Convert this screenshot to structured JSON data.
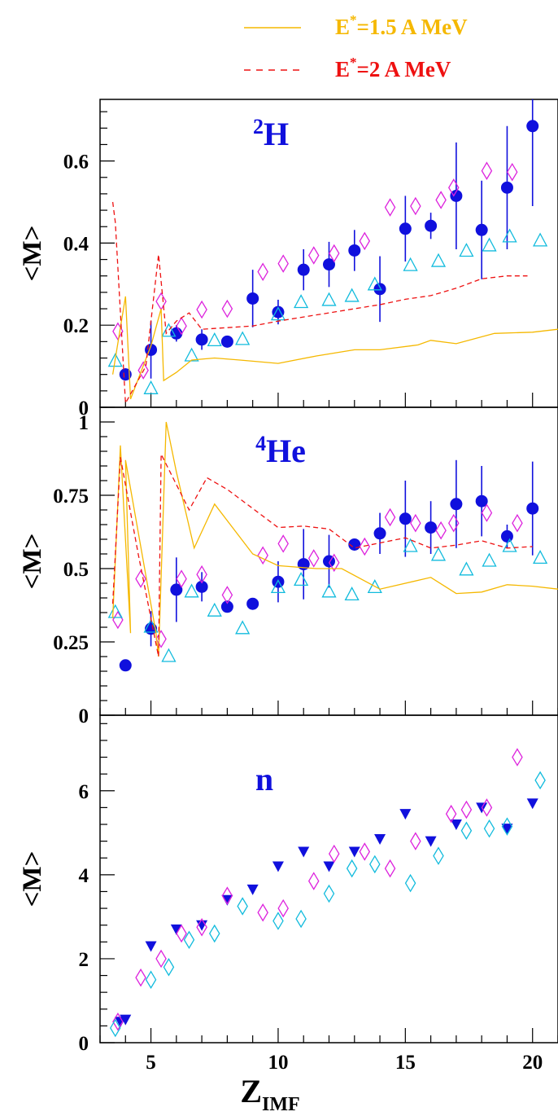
{
  "legend": [
    {
      "label": "=1.5 A MeV",
      "prefix": "E",
      "sup": "*",
      "color": "#f5b800",
      "dash": "solid"
    },
    {
      "label": "=2 A MeV",
      "prefix": "E",
      "sup": "*",
      "color": "#ee1111",
      "dash": "dashed"
    }
  ],
  "colors": {
    "filled": "#1010dd",
    "diamond": "#dd22dd",
    "open_cyan": "#11bbdd",
    "line_solid": "#f5b800",
    "line_dashed": "#ee1111",
    "title": "#1010dd"
  },
  "xaxis": {
    "label": "Z",
    "sub": "IMF",
    "range": [
      3,
      21
    ],
    "ticks": [
      5,
      10,
      15,
      20
    ]
  },
  "chart_data": [
    {
      "type": "scatter",
      "title_sup": "2",
      "title": "H",
      "ylabel": "<M>",
      "xlim": [
        3,
        21
      ],
      "ylim": [
        0,
        0.75
      ],
      "yticks": [
        "0",
        "0.2",
        "0.4",
        "0.6"
      ],
      "ytick_values": [
        0,
        0.2,
        0.4,
        0.6
      ],
      "series": [
        {
          "marker": "filled-circle",
          "points": [
            [
              4,
              0.08
            ],
            [
              5,
              0.14
            ],
            [
              6,
              0.18
            ],
            [
              7,
              0.165
            ],
            [
              8,
              0.16
            ],
            [
              9,
              0.265
            ],
            [
              10,
              0.232
            ],
            [
              11,
              0.335
            ],
            [
              12,
              0.348
            ],
            [
              13,
              0.382
            ],
            [
              14,
              0.288
            ],
            [
              15,
              0.435
            ],
            [
              16,
              0.442
            ],
            [
              17,
              0.515
            ],
            [
              18,
              0.432
            ],
            [
              19,
              0.535
            ],
            [
              20,
              0.685
            ]
          ],
          "err": [
            0.015,
            0.07,
            0.02,
            0.025,
            0.012,
            0.07,
            0.03,
            0.05,
            0.055,
            0.05,
            0.08,
            0.08,
            0.032,
            0.13,
            0.12,
            0.15,
            0.195
          ]
        },
        {
          "marker": "open-diamond",
          "points": [
            [
              3.7,
              0.185
            ],
            [
              4.7,
              0.09
            ],
            [
              5.4,
              0.258
            ],
            [
              6.2,
              0.198
            ],
            [
              7,
              0.238
            ],
            [
              8,
              0.24
            ],
            [
              9.4,
              0.33
            ],
            [
              10.2,
              0.35
            ],
            [
              11.4,
              0.37
            ],
            [
              12.2,
              0.375
            ],
            [
              13.4,
              0.405
            ],
            [
              14.4,
              0.487
            ],
            [
              15.4,
              0.49
            ],
            [
              16.4,
              0.505
            ],
            [
              16.9,
              0.535
            ],
            [
              18.2,
              0.576
            ],
            [
              19.2,
              0.573
            ]
          ]
        },
        {
          "marker": "open-triangle",
          "points": [
            [
              3.6,
              0.112
            ],
            [
              5,
              0.045
            ],
            [
              5.7,
              0.185
            ],
            [
              6.6,
              0.125
            ],
            [
              7.5,
              0.162
            ],
            [
              8.6,
              0.165
            ],
            [
              10,
              0.225
            ],
            [
              10.9,
              0.255
            ],
            [
              12,
              0.26
            ],
            [
              12.9,
              0.27
            ],
            [
              13.8,
              0.298
            ],
            [
              15.2,
              0.345
            ],
            [
              16.3,
              0.355
            ],
            [
              17.4,
              0.38
            ],
            [
              18.3,
              0.393
            ],
            [
              19.1,
              0.415
            ],
            [
              20.3,
              0.405
            ]
          ]
        },
        {
          "marker": "solid-line",
          "points": [
            [
              3.5,
              0.08
            ],
            [
              4,
              0.27
            ],
            [
              4.2,
              0.02
            ],
            [
              5,
              0.15
            ],
            [
              5.4,
              0.24
            ],
            [
              5.5,
              0.065
            ],
            [
              6,
              0.085
            ],
            [
              6.6,
              0.115
            ],
            [
              7.5,
              0.12
            ],
            [
              8.5,
              0.115
            ],
            [
              10,
              0.107
            ],
            [
              11.5,
              0.125
            ],
            [
              13,
              0.14
            ],
            [
              14,
              0.14
            ],
            [
              15.5,
              0.152
            ],
            [
              16,
              0.163
            ],
            [
              17,
              0.155
            ],
            [
              18.5,
              0.18
            ],
            [
              20,
              0.183
            ],
            [
              21,
              0.19
            ]
          ]
        },
        {
          "marker": "dashed-line",
          "points": [
            [
              3.5,
              0.5
            ],
            [
              3.6,
              0.45
            ],
            [
              4,
              0.01
            ],
            [
              4.8,
              0.1
            ],
            [
              5.3,
              0.372
            ],
            [
              5.6,
              0.18
            ],
            [
              6,
              0.21
            ],
            [
              6.5,
              0.23
            ],
            [
              7,
              0.19
            ],
            [
              9,
              0.198
            ],
            [
              10,
              0.21
            ],
            [
              11,
              0.22
            ],
            [
              12,
              0.23
            ],
            [
              13,
              0.24
            ],
            [
              14,
              0.25
            ],
            [
              15,
              0.263
            ],
            [
              16,
              0.272
            ],
            [
              17,
              0.29
            ],
            [
              18,
              0.313
            ],
            [
              19,
              0.32
            ],
            [
              19.8,
              0.32
            ]
          ]
        }
      ]
    },
    {
      "type": "scatter",
      "title_sup": "4",
      "title": "He",
      "ylabel": "<M>",
      "xlim": [
        3,
        21
      ],
      "ylim": [
        0,
        1.05
      ],
      "yticks": [
        "0",
        "0.25",
        "0.5",
        "0.75",
        "1"
      ],
      "ytick_values": [
        0,
        0.25,
        0.5,
        0.75,
        1
      ],
      "series": [
        {
          "marker": "filled-circle",
          "points": [
            [
              4,
              0.17
            ],
            [
              5,
              0.295
            ],
            [
              6,
              0.428
            ],
            [
              7,
              0.438
            ],
            [
              8,
              0.37
            ],
            [
              9,
              0.38
            ],
            [
              10,
              0.455
            ],
            [
              11,
              0.515
            ],
            [
              12,
              0.525
            ],
            [
              13,
              0.582
            ],
            [
              14,
              0.62
            ],
            [
              15,
              0.67
            ],
            [
              16,
              0.64
            ],
            [
              17,
              0.72
            ],
            [
              18,
              0.73
            ],
            [
              19,
              0.61
            ],
            [
              20,
              0.705
            ]
          ],
          "err": [
            0.01,
            0.06,
            0.11,
            0.05,
            0.01,
            0.015,
            0.07,
            0.12,
            0.09,
            0.02,
            0.07,
            0.13,
            0.09,
            0.15,
            0.12,
            0.04,
            0.16
          ]
        },
        {
          "marker": "open-diamond",
          "points": [
            [
              3.7,
              0.325
            ],
            [
              4.6,
              0.465
            ],
            [
              5.4,
              0.26
            ],
            [
              6.2,
              0.465
            ],
            [
              7,
              0.48
            ],
            [
              8,
              0.41
            ],
            [
              9.4,
              0.545
            ],
            [
              10.2,
              0.585
            ],
            [
              11.4,
              0.535
            ],
            [
              12.2,
              0.52
            ],
            [
              13.4,
              0.575
            ],
            [
              14.4,
              0.675
            ],
            [
              15.4,
              0.655
            ],
            [
              16.4,
              0.63
            ],
            [
              16.9,
              0.655
            ],
            [
              18.2,
              0.69
            ],
            [
              19.4,
              0.655
            ]
          ]
        },
        {
          "marker": "open-triangle",
          "points": [
            [
              3.6,
              0.35
            ],
            [
              5,
              0.3
            ],
            [
              5.7,
              0.2
            ],
            [
              6.6,
              0.42
            ],
            [
              7.5,
              0.355
            ],
            [
              8.6,
              0.295
            ],
            [
              10,
              0.435
            ],
            [
              10.9,
              0.46
            ],
            [
              12,
              0.42
            ],
            [
              12.9,
              0.41
            ],
            [
              13.8,
              0.435
            ],
            [
              15.2,
              0.575
            ],
            [
              16.3,
              0.545
            ],
            [
              17.4,
              0.495
            ],
            [
              18.3,
              0.525
            ],
            [
              19.1,
              0.575
            ],
            [
              20.3,
              0.535
            ]
          ]
        },
        {
          "marker": "solid-line",
          "points": [
            [
              3.5,
              0.33
            ],
            [
              3.8,
              0.92
            ],
            [
              4.2,
              0.28
            ],
            [
              4,
              0.87
            ],
            [
              5.2,
              0.28
            ],
            [
              5.3,
              0.2
            ],
            [
              5.6,
              1.0
            ],
            [
              6,
              0.83
            ],
            [
              6.7,
              0.57
            ],
            [
              7.5,
              0.72
            ],
            [
              9,
              0.55
            ],
            [
              10,
              0.51
            ],
            [
              11.5,
              0.5
            ],
            [
              12.5,
              0.5
            ],
            [
              14,
              0.43
            ],
            [
              16,
              0.47
            ],
            [
              17,
              0.415
            ],
            [
              18,
              0.42
            ],
            [
              19,
              0.445
            ],
            [
              20,
              0.44
            ],
            [
              21,
              0.43
            ]
          ]
        },
        {
          "marker": "dashed-line",
          "points": [
            [
              3.5,
              0.38
            ],
            [
              3.8,
              0.88
            ],
            [
              4.5,
              0.55
            ],
            [
              5.3,
              0.2
            ],
            [
              5.4,
              0.89
            ],
            [
              6.5,
              0.7
            ],
            [
              7.2,
              0.81
            ],
            [
              8,
              0.77
            ],
            [
              9,
              0.705
            ],
            [
              10,
              0.64
            ],
            [
              11,
              0.645
            ],
            [
              12,
              0.635
            ],
            [
              13,
              0.57
            ],
            [
              15,
              0.605
            ],
            [
              16,
              0.57
            ],
            [
              17,
              0.58
            ],
            [
              18,
              0.595
            ],
            [
              19,
              0.57
            ],
            [
              20,
              0.575
            ]
          ]
        }
      ]
    },
    {
      "type": "scatter",
      "title": "n",
      "ylabel": "<M>",
      "xlim": [
        3,
        21
      ],
      "ylim": [
        0,
        7.8
      ],
      "yticks": [
        "0",
        "2",
        "4",
        "6"
      ],
      "ytick_values": [
        0,
        2,
        4,
        6
      ],
      "series": [
        {
          "marker": "filled-triangle-down",
          "points": [
            [
              3.8,
              0.5
            ],
            [
              4,
              0.55
            ],
            [
              5,
              2.3
            ],
            [
              6,
              2.7
            ],
            [
              7,
              2.8
            ],
            [
              8,
              3.4
            ],
            [
              9,
              3.65
            ],
            [
              10,
              4.2
            ],
            [
              11,
              4.55
            ],
            [
              12,
              4.2
            ],
            [
              13,
              4.55
            ],
            [
              14,
              4.85
            ],
            [
              15,
              5.45
            ],
            [
              16,
              4.8
            ],
            [
              17,
              5.2
            ],
            [
              18,
              5.6
            ],
            [
              19,
              5.1
            ],
            [
              20,
              5.7
            ]
          ]
        },
        {
          "marker": "open-diamond",
          "points": [
            [
              3.7,
              0.5
            ],
            [
              4.6,
              1.55
            ],
            [
              5.4,
              2.0
            ],
            [
              6.2,
              2.6
            ],
            [
              7,
              2.75
            ],
            [
              8,
              3.5
            ],
            [
              9.4,
              3.1
            ],
            [
              10.2,
              3.2
            ],
            [
              11.4,
              3.85
            ],
            [
              12.2,
              4.5
            ],
            [
              13.4,
              4.55
            ],
            [
              14.4,
              4.15
            ],
            [
              15.4,
              4.8
            ],
            [
              16.8,
              5.45
            ],
            [
              17.4,
              5.55
            ],
            [
              18.2,
              5.6
            ],
            [
              19.4,
              6.8
            ]
          ]
        },
        {
          "marker": "open-diamond-cyan",
          "points": [
            [
              3.6,
              0.35
            ],
            [
              5,
              1.5
            ],
            [
              5.7,
              1.8
            ],
            [
              6.5,
              2.45
            ],
            [
              7.5,
              2.6
            ],
            [
              8.6,
              3.25
            ],
            [
              10,
              2.9
            ],
            [
              10.9,
              2.95
            ],
            [
              12,
              3.55
            ],
            [
              12.9,
              4.15
            ],
            [
              13.8,
              4.25
            ],
            [
              15.2,
              3.8
            ],
            [
              16.3,
              4.45
            ],
            [
              17.4,
              5.05
            ],
            [
              18.3,
              5.1
            ],
            [
              19,
              5.15
            ],
            [
              20.3,
              6.25
            ]
          ]
        }
      ]
    }
  ]
}
